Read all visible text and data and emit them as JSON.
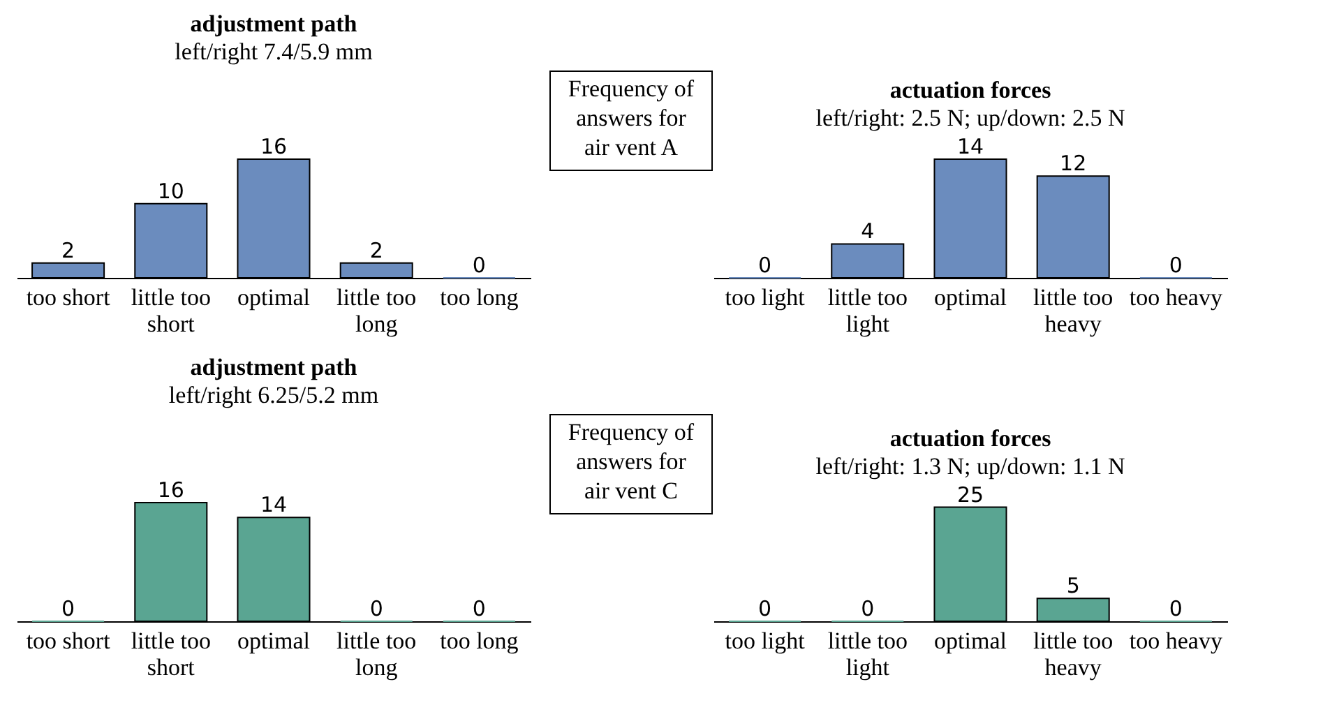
{
  "chart_data": [
    {
      "type": "bar",
      "title": "adjustment path",
      "subtitle": "left/right 7.4/5.9 mm",
      "categories": [
        "too short",
        "little too short",
        "optimal",
        "little too long",
        "too long"
      ],
      "values": [
        2,
        10,
        16,
        2,
        0
      ],
      "color": "#6b8cbe",
      "data_labels": true,
      "annotations": [
        "Frequency of\nanswers for\nair vent A"
      ]
    },
    {
      "type": "bar",
      "title": "actuation forces",
      "subtitle": "left/right: 2.5 N; up/down: 2.5 N",
      "categories": [
        "too light",
        "little too light",
        "optimal",
        "little too heavy",
        "too heavy"
      ],
      "values": [
        0,
        4,
        14,
        12,
        0
      ],
      "color": "#6b8cbe",
      "data_labels": true
    },
    {
      "type": "bar",
      "title": "adjustment path",
      "subtitle": "left/right 6.25/5.2 mm",
      "categories": [
        "too short",
        "little too short",
        "optimal",
        "little too long",
        "too long"
      ],
      "values": [
        0,
        16,
        14,
        0,
        0
      ],
      "color": "#5aa592",
      "data_labels": true,
      "annotations": [
        "Frequency of\nanswers for\nair vent C"
      ]
    },
    {
      "type": "bar",
      "title": "actuation forces",
      "subtitle": "left/right: 1.3 N; up/down: 1.1 N",
      "categories": [
        "too light",
        "little too light",
        "optimal",
        "little too heavy",
        "too heavy"
      ],
      "values": [
        0,
        0,
        25,
        5,
        0
      ],
      "color": "#5aa592",
      "data_labels": true
    }
  ]
}
